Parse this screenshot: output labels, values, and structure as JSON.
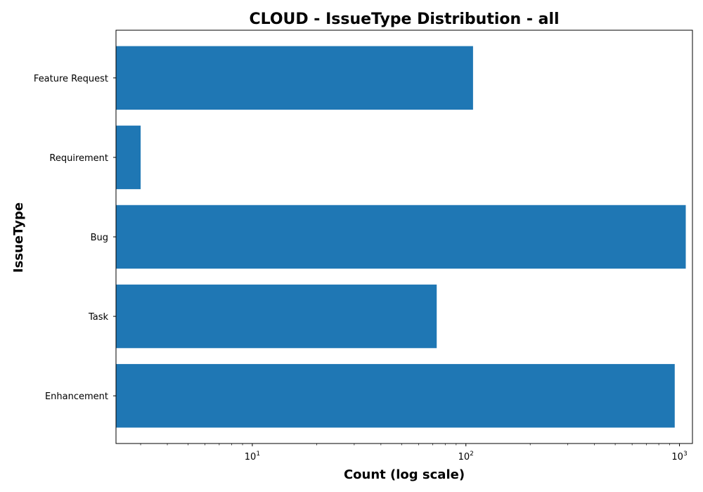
{
  "chart_data": {
    "type": "bar",
    "orientation": "horizontal",
    "title": "CLOUD - IssueType Distribution - all",
    "xlabel": "Count (log scale)",
    "ylabel": "IssueType",
    "x_scale": "log",
    "xlim": [
      2.3,
      1150
    ],
    "categories": [
      "Enhancement",
      "Task",
      "Bug",
      "Requirement",
      "Feature Request"
    ],
    "values": [
      950,
      73,
      1070,
      3,
      108
    ],
    "x_ticks": [
      {
        "value": 10,
        "base": "10",
        "exp": "1"
      },
      {
        "value": 100,
        "base": "10",
        "exp": "2"
      },
      {
        "value": 1000,
        "base": "10",
        "exp": "3"
      }
    ],
    "grid": false,
    "bar_color": "#1f77b4"
  }
}
